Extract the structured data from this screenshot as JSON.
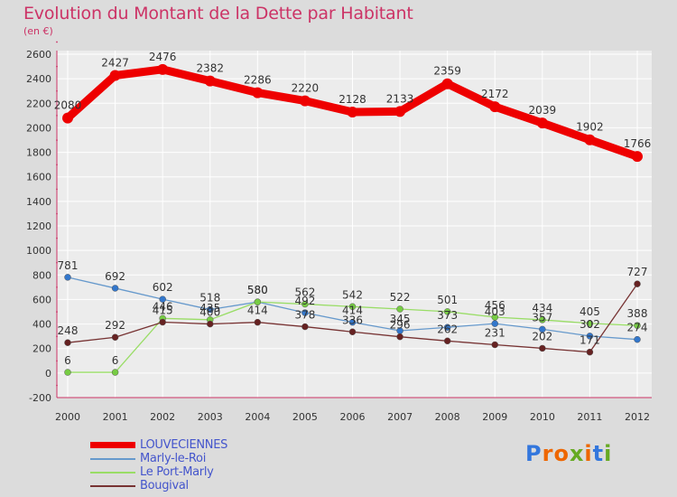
{
  "title": "Evolution du Montant de la Dette par Habitant",
  "subtitle": "(en €)",
  "logo": {
    "text": "Proxiti",
    "letter_colors": [
      "#3377dd",
      "#ee6600",
      "#ee6600",
      "#66aa22",
      "#ee6600",
      "#3377dd",
      "#66aa22"
    ]
  },
  "chart_data": {
    "type": "line",
    "title": "Evolution du Montant de la Dette par Habitant",
    "ylabel": "(en €)",
    "xlabel": "",
    "x": [
      "2000",
      "2001",
      "2002",
      "2003",
      "2004",
      "2005",
      "2006",
      "2007",
      "2008",
      "2009",
      "2010",
      "2011",
      "2012"
    ],
    "ylim": [
      -200,
      2600
    ],
    "yticks": [
      "-200",
      "0",
      "200",
      "400",
      "600",
      "800",
      "1000",
      "1200",
      "1400",
      "1600",
      "1800",
      "2000",
      "2200",
      "2400",
      "2600"
    ],
    "grid": true,
    "legend_position": "bottom-left",
    "series": [
      {
        "name": "LOUVECIENNES",
        "color": "#ee0000",
        "marker_color": "#ee0000",
        "emphasis": true,
        "values": [
          2080,
          2427,
          2476,
          2382,
          2286,
          2220,
          2128,
          2133,
          2359,
          2172,
          2039,
          1902,
          1766
        ],
        "labels": [
          "2080",
          "2427",
          "2476",
          "2382",
          "2286",
          "2220",
          "2128",
          "2133",
          "2359",
          "2172",
          "2039",
          "1902",
          "1766"
        ]
      },
      {
        "name": "Marly-le-Roi",
        "color": "#6699cc",
        "marker_color": "#3377cc",
        "values": [
          781,
          692,
          602,
          518,
          580,
          492,
          414,
          345,
          373,
          403,
          357,
          302,
          274
        ],
        "labels": [
          "781",
          "692",
          "602",
          "518",
          "580",
          "492",
          "414",
          "345",
          "373",
          "403",
          "357",
          "302",
          "274"
        ]
      },
      {
        "name": "Le Port-Marly",
        "color": "#99dd66",
        "marker_color": "#77cc44",
        "values": [
          6,
          6,
          446,
          435,
          580,
          562,
          542,
          522,
          501,
          456,
          434,
          405,
          388
        ],
        "labels": [
          "6",
          "6",
          "446",
          "435",
          "580",
          "562",
          "542",
          "522",
          "501",
          "456",
          "434",
          "405",
          "388"
        ]
      },
      {
        "name": "Bougival",
        "color": "#773333",
        "marker_color": "#662222",
        "values": [
          248,
          292,
          415,
          400,
          414,
          378,
          336,
          296,
          262,
          231,
          202,
          171,
          727
        ],
        "labels": [
          "248",
          "292",
          "415",
          "400",
          "414",
          "378",
          "336",
          "296",
          "262",
          "231",
          "202",
          "171",
          "727"
        ]
      }
    ]
  }
}
